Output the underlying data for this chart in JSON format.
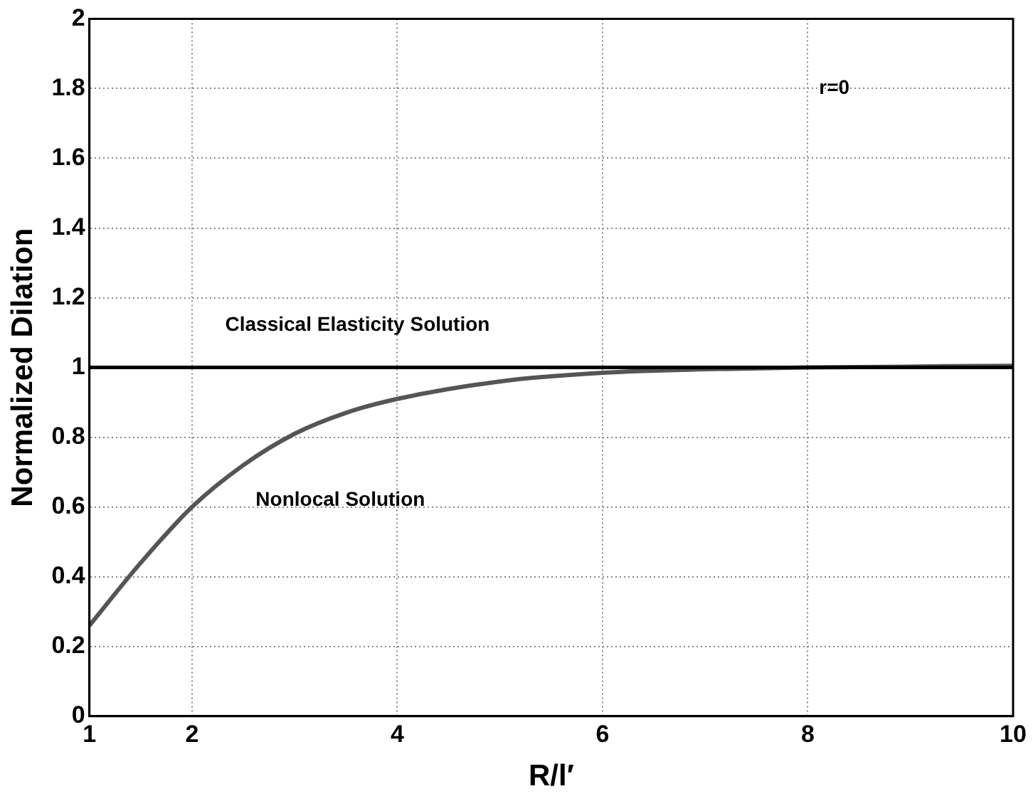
{
  "chart_data": {
    "type": "line",
    "xlabel": "R/l′",
    "ylabel": "Normalized Dilation",
    "annotations": [
      "r=0"
    ],
    "xlim": [
      1,
      10
    ],
    "xticks": [
      1,
      2,
      4,
      6,
      8,
      10
    ],
    "ylim": [
      0,
      2
    ],
    "yticks": [
      0,
      0.2,
      0.4,
      0.6,
      0.8,
      1,
      1.2,
      1.4,
      1.6,
      1.8,
      2
    ],
    "grid": true,
    "line_style": "solid",
    "marker": "none",
    "series": [
      {
        "name": "Classical Elasticity Solution",
        "color": "#000000",
        "x": [
          1,
          10
        ],
        "values": [
          1,
          1
        ]
      },
      {
        "name": "Nonlocal Solution",
        "color": "#555555",
        "x": [
          1,
          1.5,
          2,
          2.5,
          3,
          3.5,
          4,
          5,
          6,
          7,
          8,
          10
        ],
        "values": [
          0.26,
          0.44,
          0.6,
          0.72,
          0.81,
          0.87,
          0.91,
          0.96,
          0.985,
          0.995,
          1,
          1.005
        ]
      }
    ]
  }
}
